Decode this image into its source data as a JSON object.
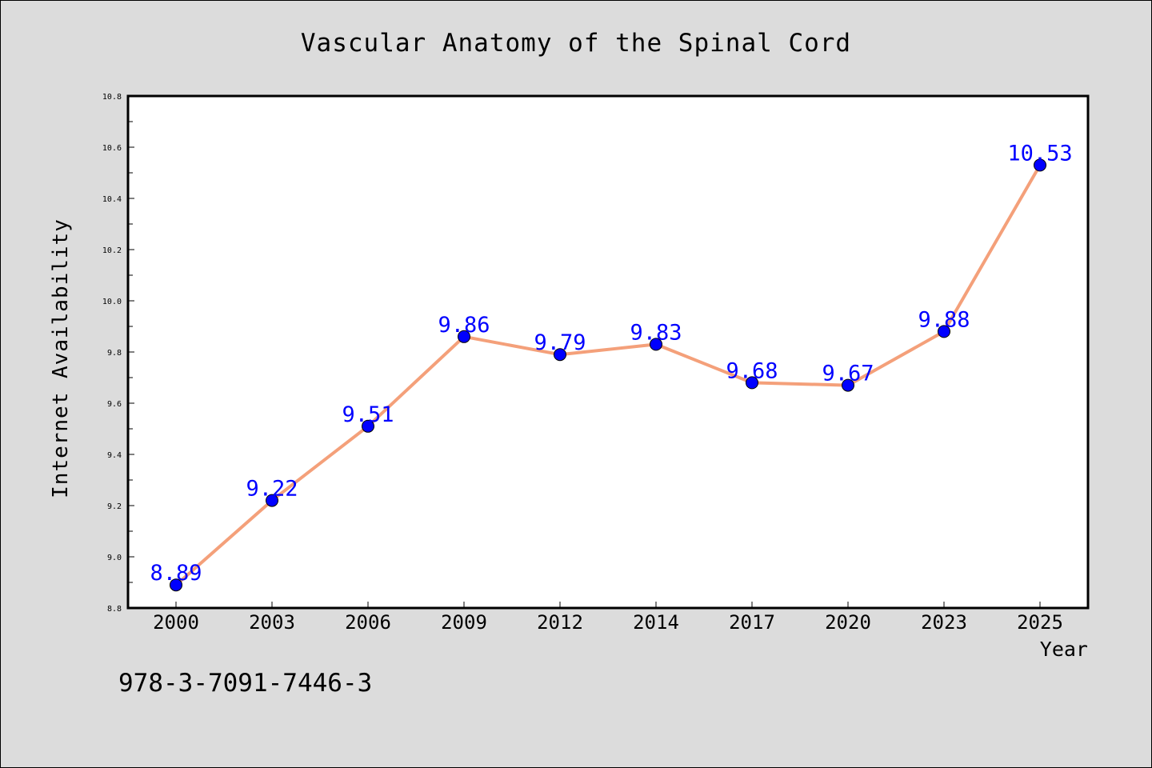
{
  "colors": {
    "page_bg": "#dcdcdc",
    "plot_bg": "#ffffff",
    "line": "#f4a07a",
    "marker": "#0000ff",
    "label": "#0000ff"
  },
  "footnote": "978-3-7091-7446-3",
  "chart_data": {
    "type": "line",
    "title": "Vascular Anatomy of the Spinal Cord",
    "xlabel": "Year",
    "ylabel": "Internet Availability",
    "categories": [
      "2000",
      "2003",
      "2006",
      "2009",
      "2012",
      "2014",
      "2017",
      "2020",
      "2023",
      "2025"
    ],
    "series": [
      {
        "values": [
          8.89,
          9.22,
          9.51,
          9.86,
          9.79,
          9.83,
          9.68,
          9.67,
          9.88,
          10.53
        ],
        "labels": [
          "8.89",
          "9.22",
          "9.51",
          "9.86",
          "9.79",
          "9.83",
          "9.68",
          "9.67",
          "9.88",
          "10.53"
        ]
      }
    ],
    "ylim": [
      8.8,
      10.8
    ],
    "yticks": [
      "8.8",
      "9.0",
      "9.2",
      "9.4",
      "9.6",
      "9.8",
      "10.0",
      "10.2",
      "10.4",
      "10.6",
      "10.8"
    ],
    "grid": false,
    "legend": "none"
  }
}
